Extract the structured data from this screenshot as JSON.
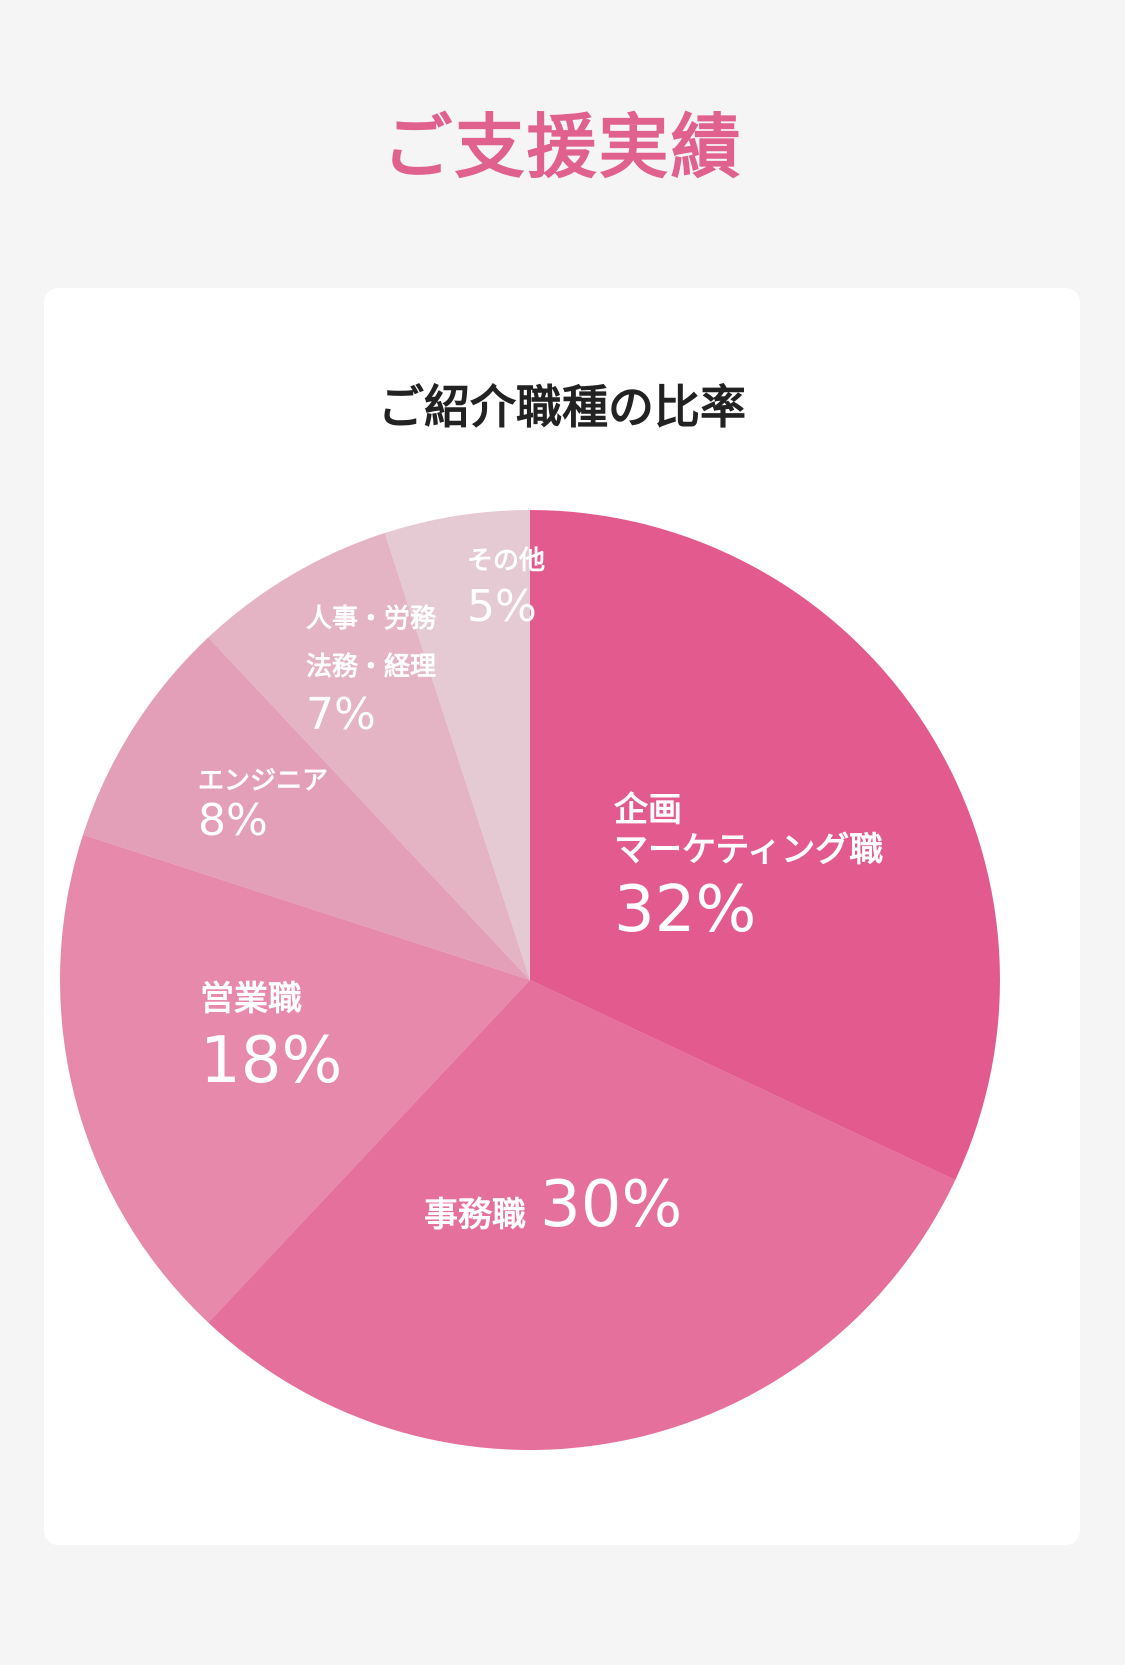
{
  "page": {
    "title": "ご支援実績"
  },
  "chart_data": {
    "type": "pie",
    "title": "ご紹介職種の比率",
    "start_angle_deg": 0,
    "direction": "clockwise",
    "slices": [
      {
        "label_lines": [
          "企画",
          "マーケティング職"
        ],
        "value": 32,
        "value_text": "32%",
        "color": "#e35b8e"
      },
      {
        "label_lines": [
          "事務職"
        ],
        "value": 30,
        "value_text": "30%",
        "color": "#e4709b"
      },
      {
        "label_lines": [
          "営業職"
        ],
        "value": 18,
        "value_text": "18%",
        "color": "#e689aa"
      },
      {
        "label_lines": [
          "エンジニア"
        ],
        "value": 8,
        "value_text": "8%",
        "color": "#e49fb8"
      },
      {
        "label_lines": [
          "人事・労務",
          "法務・経理"
        ],
        "value": 7,
        "value_text": "7%",
        "color": "#e4b3c4"
      },
      {
        "label_lines": [
          "その他"
        ],
        "value": 5,
        "value_text": "5%",
        "color": "#e5c9d3"
      }
    ]
  }
}
